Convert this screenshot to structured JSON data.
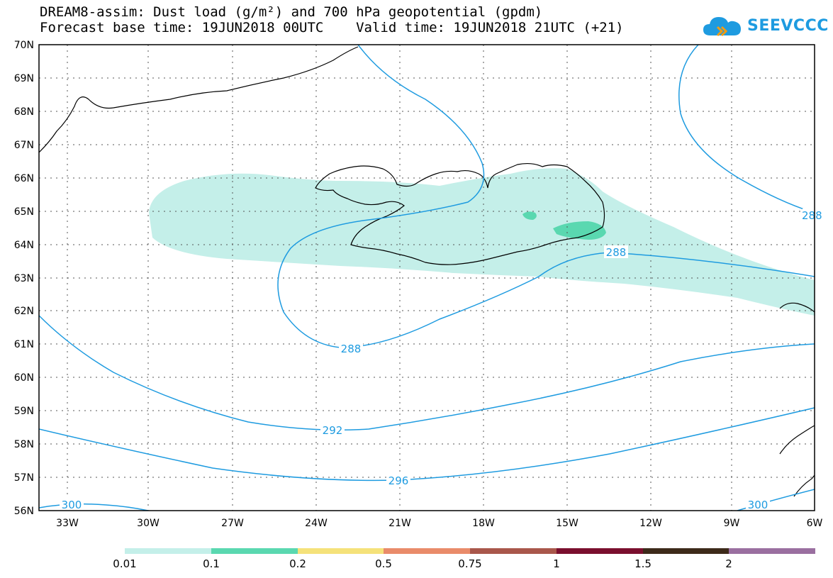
{
  "header": {
    "line1": "DREAM8-assim: Dust load (g/m²) and 700 hPa geopotential (gpdm)",
    "line2": "Forecast base time: 19JUN2018 00UTC    Valid time: 19JUN2018 21UTC (+21)"
  },
  "logo": {
    "text": "SEEVCCC",
    "icon": "cloud-icon"
  },
  "axes": {
    "lat_labels": [
      "70N",
      "69N",
      "68N",
      "67N",
      "66N",
      "65N",
      "64N",
      "63N",
      "62N",
      "61N",
      "60N",
      "59N",
      "58N",
      "57N",
      "56N"
    ],
    "lon_labels": [
      "33W",
      "30W",
      "27W",
      "24W",
      "21W",
      "18W",
      "15W",
      "12W",
      "9W",
      "6W"
    ]
  },
  "contours": {
    "color": "#1e9be0",
    "labels": [
      "288",
      "288",
      "288",
      "292",
      "296",
      "300",
      "300"
    ]
  },
  "dust_colors": {
    "light": "#c4efe9",
    "medium": "#5ad8b0"
  },
  "legend": {
    "colors": [
      "#c4efe9",
      "#5ad8b0",
      "#f5e27a",
      "#e98b6a",
      "#a9574b",
      "#a7574e",
      "#7a0f2e",
      "#3d2a1a",
      "#9a6fa0"
    ],
    "labels": [
      "0.01",
      "0.1",
      "0.2",
      "0.5",
      "0.75",
      "1",
      "1.5",
      "2"
    ]
  }
}
